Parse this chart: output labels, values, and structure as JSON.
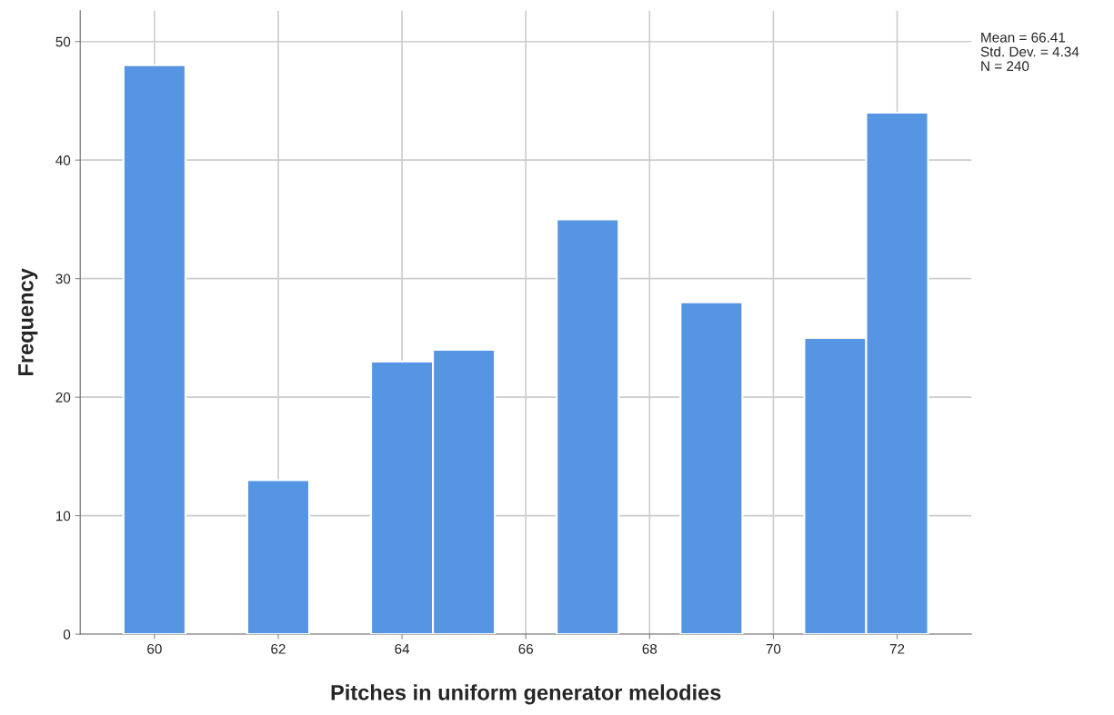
{
  "chart_data": {
    "type": "histogram",
    "xlabel": "Pitches in uniform generator melodies",
    "ylabel": "Frequency",
    "bins": [
      59.5,
      60.5,
      61.5,
      62.5,
      63.5,
      64.5,
      65.5,
      66.5,
      67.5,
      68.5,
      69.5,
      70.5,
      71.5,
      72.5
    ],
    "values": [
      48,
      0,
      13,
      0,
      23,
      24,
      0,
      35,
      0,
      28,
      0,
      25,
      44
    ],
    "color": "#5595e3",
    "xlim": [
      58.8,
      73.2
    ],
    "xticks": [
      60,
      62,
      64,
      66,
      68,
      70,
      72
    ],
    "ylim": [
      0,
      52.6
    ],
    "yticks": [
      0,
      10,
      20,
      30,
      40,
      50
    ],
    "grid": true,
    "legend": false,
    "annotations": [
      "Mean = 66.41",
      "Std. Dev. = 4.34",
      "N = 240"
    ]
  }
}
